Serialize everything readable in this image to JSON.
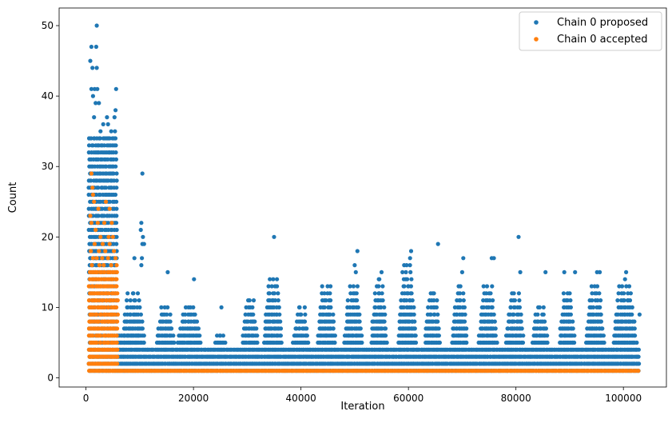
{
  "chart_data": {
    "type": "scatter",
    "xlabel": "Iteration",
    "ylabel": "Count",
    "xlim": [
      -5000,
      108000
    ],
    "ylim": [
      -1.3,
      52.5
    ],
    "x_ticks": [
      0,
      20000,
      40000,
      60000,
      80000,
      100000
    ],
    "x_tick_labels": [
      "0",
      "20000",
      "40000",
      "60000",
      "80000",
      "100000"
    ],
    "y_ticks": [
      0,
      10,
      20,
      30,
      40,
      50
    ],
    "y_tick_labels": [
      "0",
      "10",
      "20",
      "30",
      "40",
      "50"
    ],
    "grid": false,
    "legend_position": "top-right",
    "series": [
      {
        "name": "Chain 0 proposed",
        "color": "#1f77b4",
        "bands": [
          {
            "x": [
              500,
              5800
            ],
            "y_min": 1,
            "y_max": 34
          },
          {
            "x": [
              5800,
              10000
            ],
            "y_min": 1,
            "y_max": 6
          },
          {
            "x": [
              10000,
              22000
            ],
            "y_min": 1,
            "y_max": 4
          },
          {
            "x": [
              22000,
              103000
            ],
            "y_min": 1,
            "y_max": 4
          }
        ],
        "clusters": [
          {
            "x": [
              6500,
              11000
            ],
            "y_max": 12
          },
          {
            "x": [
              13000,
              16500
            ],
            "y_max": 10
          },
          {
            "x": [
              17000,
              21500
            ],
            "y_max": 10
          },
          {
            "x": [
              24000,
              26000
            ],
            "y_max": 6
          },
          {
            "x": [
              29000,
              32000
            ],
            "y_max": 11
          },
          {
            "x": [
              33000,
              36500
            ],
            "y_max": 14
          },
          {
            "x": [
              38500,
              41500
            ],
            "y_max": 10
          },
          {
            "x": [
              43000,
              46500
            ],
            "y_max": 13
          },
          {
            "x": [
              48000,
              51500
            ],
            "y_max": 13
          },
          {
            "x": [
              53000,
              56000
            ],
            "y_max": 14
          },
          {
            "x": [
              58000,
              61500
            ],
            "y_max": 16
          },
          {
            "x": [
              63000,
              66000
            ],
            "y_max": 12
          },
          {
            "x": [
              68000,
              71000
            ],
            "y_max": 13
          },
          {
            "x": [
              73000,
              76500
            ],
            "y_max": 13
          },
          {
            "x": [
              78000,
              81500
            ],
            "y_max": 12
          },
          {
            "x": [
              83000,
              86000
            ],
            "y_max": 10
          },
          {
            "x": [
              88000,
              91000
            ],
            "y_max": 12
          },
          {
            "x": [
              93000,
              96500
            ],
            "y_max": 13
          },
          {
            "x": [
              98000,
              102500
            ],
            "y_max": 13
          }
        ],
        "points": [
          {
            "x": 2000,
            "y": 50
          },
          {
            "x": 1000,
            "y": 47
          },
          {
            "x": 1900,
            "y": 47
          },
          {
            "x": 800,
            "y": 45
          },
          {
            "x": 1200,
            "y": 44
          },
          {
            "x": 2000,
            "y": 44
          },
          {
            "x": 1000,
            "y": 41
          },
          {
            "x": 1600,
            "y": 41
          },
          {
            "x": 2100,
            "y": 41
          },
          {
            "x": 5600,
            "y": 41
          },
          {
            "x": 1300,
            "y": 40
          },
          {
            "x": 1800,
            "y": 39
          },
          {
            "x": 2400,
            "y": 39
          },
          {
            "x": 5500,
            "y": 38
          },
          {
            "x": 1500,
            "y": 37
          },
          {
            "x": 3900,
            "y": 37
          },
          {
            "x": 5300,
            "y": 37
          },
          {
            "x": 3200,
            "y": 36
          },
          {
            "x": 4100,
            "y": 36
          },
          {
            "x": 2700,
            "y": 35
          },
          {
            "x": 4700,
            "y": 35
          },
          {
            "x": 5400,
            "y": 35
          },
          {
            "x": 10500,
            "y": 29
          },
          {
            "x": 10300,
            "y": 22
          },
          {
            "x": 10200,
            "y": 21
          },
          {
            "x": 10600,
            "y": 20
          },
          {
            "x": 10500,
            "y": 19
          },
          {
            "x": 10800,
            "y": 19
          },
          {
            "x": 9000,
            "y": 17
          },
          {
            "x": 10400,
            "y": 17
          },
          {
            "x": 10300,
            "y": 16
          },
          {
            "x": 15200,
            "y": 15
          },
          {
            "x": 20100,
            "y": 14
          },
          {
            "x": 25200,
            "y": 10
          },
          {
            "x": 35000,
            "y": 20
          },
          {
            "x": 50500,
            "y": 18
          },
          {
            "x": 50000,
            "y": 16
          },
          {
            "x": 50200,
            "y": 15
          },
          {
            "x": 55000,
            "y": 15
          },
          {
            "x": 60500,
            "y": 18
          },
          {
            "x": 60300,
            "y": 17
          },
          {
            "x": 65500,
            "y": 19
          },
          {
            "x": 70200,
            "y": 17
          },
          {
            "x": 70000,
            "y": 15
          },
          {
            "x": 75500,
            "y": 17
          },
          {
            "x": 75900,
            "y": 17
          },
          {
            "x": 80500,
            "y": 20
          },
          {
            "x": 80800,
            "y": 15
          },
          {
            "x": 85500,
            "y": 15
          },
          {
            "x": 89000,
            "y": 15
          },
          {
            "x": 91000,
            "y": 15
          },
          {
            "x": 95100,
            "y": 15
          },
          {
            "x": 95600,
            "y": 15
          },
          {
            "x": 100500,
            "y": 15
          },
          {
            "x": 100300,
            "y": 14
          },
          {
            "x": 103000,
            "y": 9
          }
        ]
      },
      {
        "name": "Chain 0 accepted",
        "color": "#ff7f0e",
        "bands": [
          {
            "x": [
              500,
              6000
            ],
            "y_min": 1,
            "y_max": 15
          },
          {
            "x": [
              6000,
              103000
            ],
            "y_min": 1,
            "y_max": 1
          }
        ],
        "points": [
          {
            "x": 1000,
            "y": 29
          },
          {
            "x": 1200,
            "y": 27
          },
          {
            "x": 1300,
            "y": 26
          },
          {
            "x": 1500,
            "y": 25
          },
          {
            "x": 3700,
            "y": 25
          },
          {
            "x": 2300,
            "y": 24
          },
          {
            "x": 4400,
            "y": 24
          },
          {
            "x": 800,
            "y": 23
          },
          {
            "x": 1000,
            "y": 22
          },
          {
            "x": 2200,
            "y": 22
          },
          {
            "x": 3400,
            "y": 22
          },
          {
            "x": 4800,
            "y": 22
          },
          {
            "x": 1800,
            "y": 21
          },
          {
            "x": 2700,
            "y": 20
          },
          {
            "x": 4200,
            "y": 20
          },
          {
            "x": 5000,
            "y": 20
          },
          {
            "x": 1600,
            "y": 19
          },
          {
            "x": 3100,
            "y": 19
          },
          {
            "x": 4400,
            "y": 19
          },
          {
            "x": 900,
            "y": 18
          },
          {
            "x": 2400,
            "y": 18
          },
          {
            "x": 3600,
            "y": 18
          },
          {
            "x": 5200,
            "y": 18
          },
          {
            "x": 1300,
            "y": 17
          },
          {
            "x": 2000,
            "y": 17
          },
          {
            "x": 3000,
            "y": 17
          },
          {
            "x": 4100,
            "y": 17
          },
          {
            "x": 5500,
            "y": 17
          },
          {
            "x": 1100,
            "y": 16
          },
          {
            "x": 2500,
            "y": 16
          },
          {
            "x": 3300,
            "y": 16
          },
          {
            "x": 4700,
            "y": 16
          },
          {
            "x": 5700,
            "y": 16
          }
        ]
      }
    ]
  }
}
